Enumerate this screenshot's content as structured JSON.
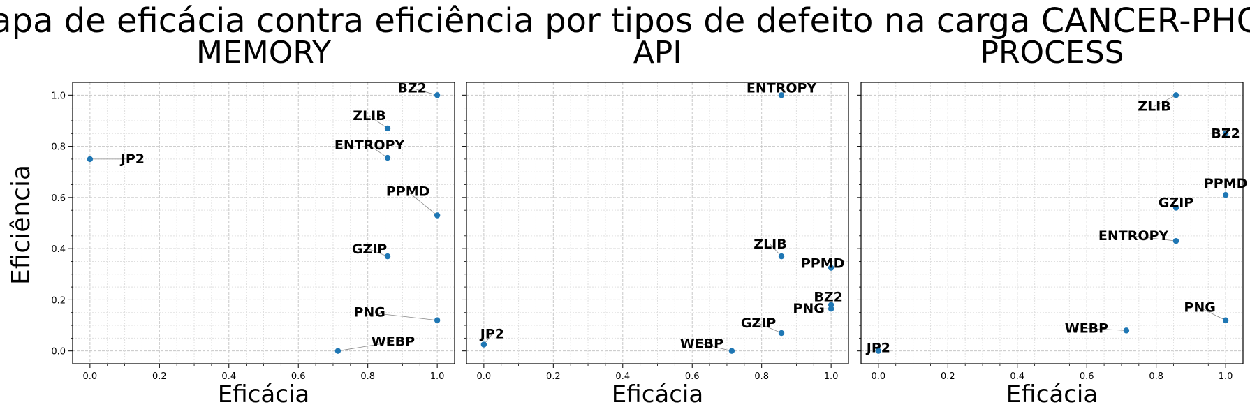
{
  "suptitle": "Mapa de eficácia contra eficiência por tipos de defeito na carga CANCER-PHON",
  "ylabel": "Eficiência",
  "point_color": "#1f77b4",
  "chart_data": [
    {
      "type": "scatter",
      "title": "MEMORY",
      "xlabel": "Eficácia",
      "ylabel": "Eficiência",
      "xlim": [
        -0.05,
        1.05
      ],
      "ylim": [
        -0.05,
        1.05
      ],
      "xticks": [
        "0.0",
        "0.2",
        "0.4",
        "0.6",
        "0.8",
        "1.0"
      ],
      "yticks": [
        "0.0",
        "0.2",
        "0.4",
        "0.6",
        "0.8",
        "1.0"
      ],
      "grid": true,
      "points": [
        {
          "label": "BZ2",
          "x": 1.0,
          "y": 1.0
        },
        {
          "label": "ZLIB",
          "x": 0.857,
          "y": 0.87
        },
        {
          "label": "JP2",
          "x": 0.0,
          "y": 0.75
        },
        {
          "label": "ENTROPY",
          "x": 0.857,
          "y": 0.755
        },
        {
          "label": "PPMD",
          "x": 1.0,
          "y": 0.53
        },
        {
          "label": "GZIP",
          "x": 0.857,
          "y": 0.37
        },
        {
          "label": "PNG",
          "x": 1.0,
          "y": 0.12
        },
        {
          "label": "WEBP",
          "x": 0.714,
          "y": 0.0
        }
      ]
    },
    {
      "type": "scatter",
      "title": "API",
      "xlabel": "Eficácia",
      "xlim": [
        -0.05,
        1.05
      ],
      "ylim": [
        -0.05,
        1.05
      ],
      "xticks": [
        "0.0",
        "0.2",
        "0.4",
        "0.6",
        "0.8",
        "1.0"
      ],
      "grid": true,
      "points": [
        {
          "label": "ENTROPY",
          "x": 0.857,
          "y": 1.0
        },
        {
          "label": "ZLIB",
          "x": 0.857,
          "y": 0.37
        },
        {
          "label": "PPMD",
          "x": 1.0,
          "y": 0.325
        },
        {
          "label": "BZ2",
          "x": 1.0,
          "y": 0.18
        },
        {
          "label": "PNG",
          "x": 1.0,
          "y": 0.165
        },
        {
          "label": "GZIP",
          "x": 0.857,
          "y": 0.07
        },
        {
          "label": "JP2",
          "x": 0.0,
          "y": 0.025
        },
        {
          "label": "WEBP",
          "x": 0.714,
          "y": 0.0
        }
      ]
    },
    {
      "type": "scatter",
      "title": "PROCESS",
      "xlabel": "Eficácia",
      "xlim": [
        -0.05,
        1.05
      ],
      "ylim": [
        -0.05,
        1.05
      ],
      "xticks": [
        "0.0",
        "0.2",
        "0.4",
        "0.6",
        "0.8",
        "1.0"
      ],
      "grid": true,
      "points": [
        {
          "label": "ZLIB",
          "x": 0.857,
          "y": 1.0
        },
        {
          "label": "BZ2",
          "x": 1.0,
          "y": 0.85
        },
        {
          "label": "PPMD",
          "x": 1.0,
          "y": 0.61
        },
        {
          "label": "GZIP",
          "x": 0.857,
          "y": 0.56
        },
        {
          "label": "ENTROPY",
          "x": 0.857,
          "y": 0.43
        },
        {
          "label": "PNG",
          "x": 1.0,
          "y": 0.12
        },
        {
          "label": "WEBP",
          "x": 0.714,
          "y": 0.08
        },
        {
          "label": "JP2",
          "x": 0.0,
          "y": 0.0
        }
      ]
    }
  ]
}
